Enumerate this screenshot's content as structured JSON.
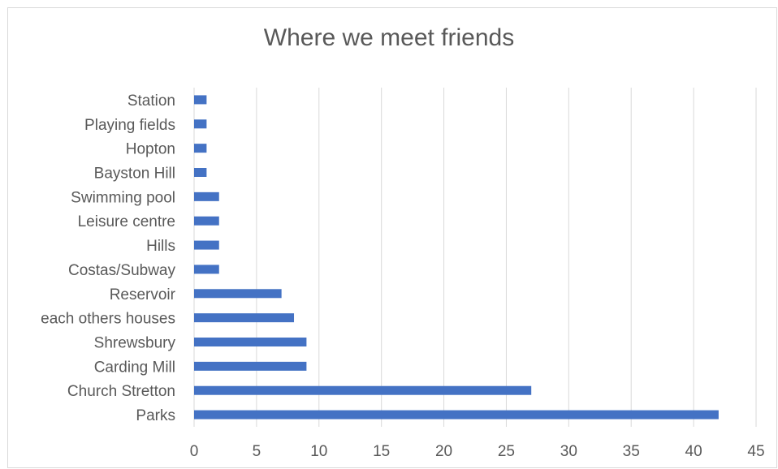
{
  "chart_data": {
    "type": "bar",
    "orientation": "horizontal",
    "title": "Where we meet friends",
    "xlabel": "",
    "ylabel": "",
    "categories": [
      "Station",
      "Playing fields",
      "Hopton",
      "Bayston Hill",
      "Swimming pool",
      "Leisure centre",
      "Hills",
      "Costas/Subway",
      "Reservoir",
      "each others houses",
      "Shrewsbury",
      "Carding Mill",
      "Church Stretton",
      "Parks"
    ],
    "values": [
      1,
      1,
      1,
      1,
      2,
      2,
      2,
      2,
      7,
      8,
      9,
      9,
      27,
      42
    ],
    "xlim": [
      0,
      45
    ],
    "xticks": [
      0,
      5,
      10,
      15,
      20,
      25,
      30,
      35,
      40,
      45
    ],
    "grid": "vertical",
    "legend": "none",
    "colors": {
      "bar": "#4472c4",
      "grid": "#d9d9d9",
      "text": "#595959"
    }
  }
}
